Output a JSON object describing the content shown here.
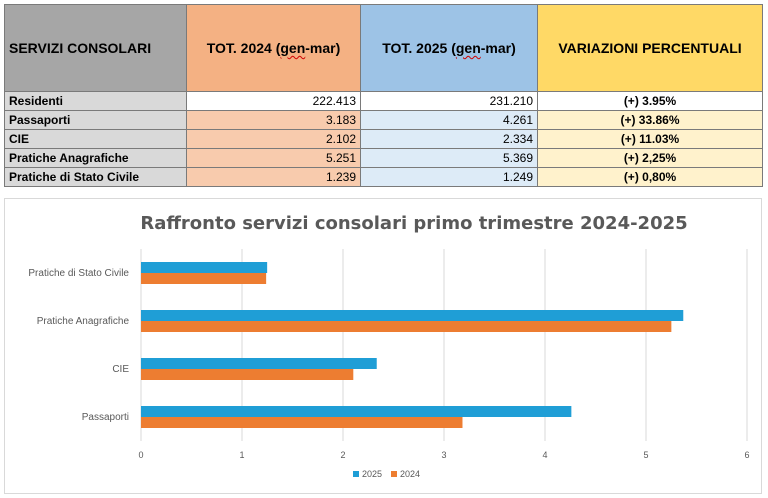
{
  "table": {
    "headers": [
      "SERVIZI CONSOLARI",
      "TOT. 2024 (gen-mar)",
      "TOT. 2025 (gen-mar)",
      "VARIAZIONI PERCENTUALI"
    ],
    "rows": [
      {
        "name": "Residenti",
        "v2024": "222.413",
        "v2025": "231.210",
        "variation": "(+) 3.95%"
      },
      {
        "name": "Passaporti",
        "v2024": "3.183",
        "v2025": "4.261",
        "variation": "(+) 33.86%"
      },
      {
        "name": "CIE",
        "v2024": "2.102",
        "v2025": "2.334",
        "variation": "(+) 11.03%"
      },
      {
        "name": "Pratiche Anagrafiche",
        "v2024": "5.251",
        "v2025": "5.369",
        "variation": "(+) 2,25%"
      },
      {
        "name": "Pratiche di Stato Civile",
        "v2024": "1.239",
        "v2025": "1.249",
        "variation": "(+) 0,80%"
      }
    ]
  },
  "chart_data": {
    "type": "bar",
    "orientation": "horizontal",
    "title": "Raffronto servizi consolari primo trimestre 2024-2025",
    "categories": [
      "Pratiche di Stato Civile",
      "Pratiche Anagrafiche",
      "CIE",
      "Passaporti"
    ],
    "series": [
      {
        "name": "2025",
        "color": "#1f9ed6",
        "values": [
          1.249,
          5.369,
          2.334,
          4.261
        ]
      },
      {
        "name": "2024",
        "color": "#ed7d31",
        "values": [
          1.239,
          5.251,
          2.102,
          3.183
        ]
      }
    ],
    "xlim": [
      0,
      6
    ],
    "xticks": [
      0,
      1,
      2,
      3,
      4,
      5,
      6
    ],
    "grid": true,
    "legend": "bottom"
  }
}
